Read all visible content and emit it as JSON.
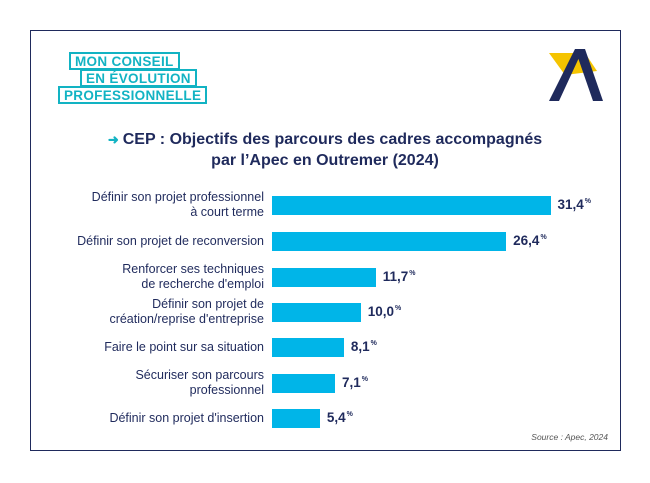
{
  "logo": {
    "lines": [
      "MON CONSEIL",
      "EN ÉVOLUTION",
      "PROFESSIONNELLE"
    ],
    "brand_icon": "apec-a-logo-icon"
  },
  "colors": {
    "bar": "#00b5e8",
    "navy": "#1f2a5c",
    "teal": "#12b3c3",
    "yellow": "#f5c400"
  },
  "chart_data": {
    "type": "bar",
    "orientation": "horizontal",
    "title_line1": "CEP : Objectifs des parcours des cadres accompagnés",
    "title_line2": "par l’Apec en Outremer (2024)",
    "unit": "%",
    "categories": [
      [
        "Définir son projet professionnel",
        "à court terme"
      ],
      [
        "Définir son projet de reconversion"
      ],
      [
        "Renforcer ses techniques",
        "de recherche d'emploi"
      ],
      [
        "Définir son projet de",
        "création/reprise d'entreprise"
      ],
      [
        "Faire le point sur sa situation"
      ],
      [
        "Sécuriser son parcours",
        "professionnel"
      ],
      [
        "Définir son projet d'insertion"
      ]
    ],
    "values": [
      31.4,
      26.4,
      11.7,
      10.0,
      8.1,
      7.1,
      5.4
    ],
    "value_labels": [
      "31,4",
      "26,4",
      "11,7",
      "10,0",
      "8,1",
      "7,1",
      "5,4"
    ],
    "source": "Source : Apec, 2024"
  }
}
